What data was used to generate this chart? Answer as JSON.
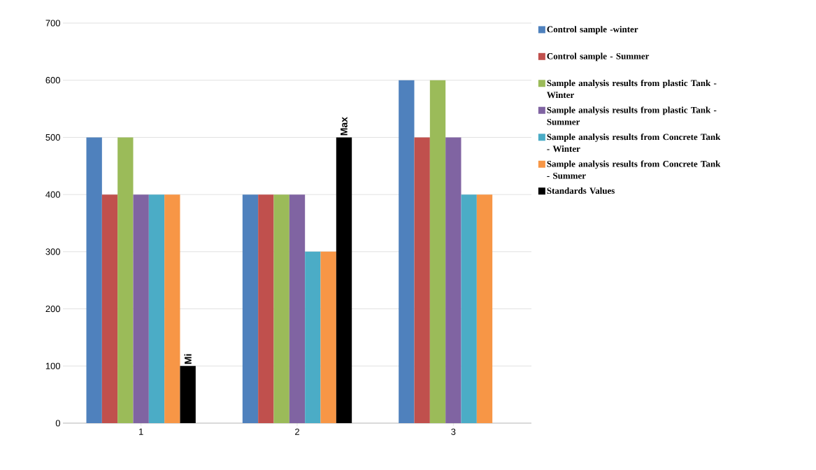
{
  "chart_data": {
    "type": "bar",
    "categories": [
      "1",
      "2",
      "3"
    ],
    "series": [
      {
        "name": "Control   sample -winter",
        "color": "#4f81bd",
        "values": [
          500,
          400,
          600
        ]
      },
      {
        "name": "Control   sample - Summer",
        "color": "#c0504d",
        "values": [
          400,
          400,
          500
        ]
      },
      {
        "name": "Sample analysis results  from plastic Tank - Winter",
        "color": "#9bbb59",
        "values": [
          500,
          400,
          600
        ]
      },
      {
        "name": "Sample analysis results  from plastic Tank -  Summer",
        "color": "#8064a2",
        "values": [
          400,
          400,
          500
        ]
      },
      {
        "name": "Sample analysis results  from Concrete  Tank - Winter",
        "color": "#4bacc6",
        "values": [
          400,
          300,
          400
        ]
      },
      {
        "name": "Sample analysis results  from Concrete  Tank - Summer",
        "color": "#f79646",
        "values": [
          400,
          300,
          400
        ]
      },
      {
        "name": "Standards Values",
        "color": "#000000",
        "values": [
          100,
          500,
          null
        ]
      }
    ],
    "annotations": [
      "Mi",
      "Max"
    ],
    "ylim": [
      0,
      700
    ],
    "yticks": [
      0,
      100,
      200,
      300,
      400,
      500,
      600,
      700
    ],
    "grid": "y",
    "legend": "right"
  }
}
